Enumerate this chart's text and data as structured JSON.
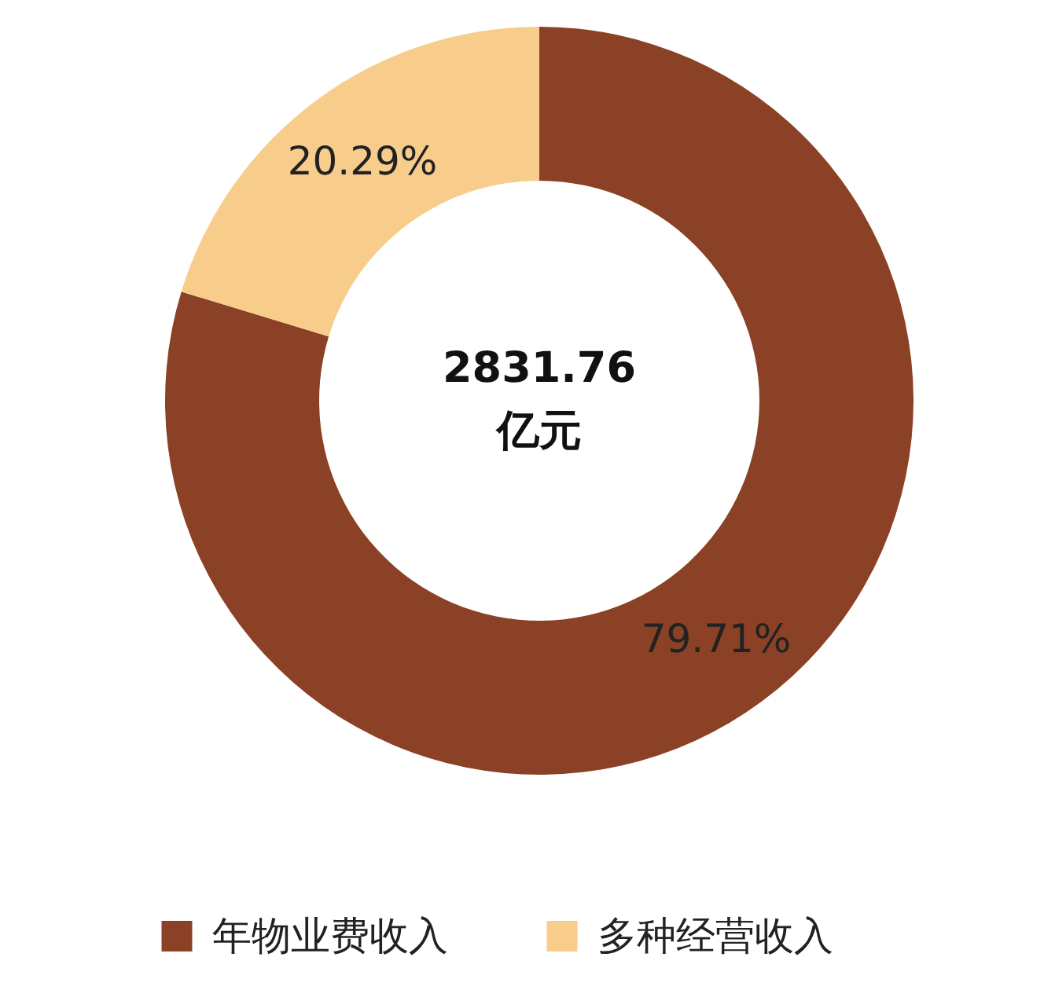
{
  "chart_data": {
    "type": "donut",
    "categories": [
      "年物业费收入",
      "多种经营收入"
    ],
    "values": [
      79.71,
      20.29
    ],
    "colors": [
      "#8b4125",
      "#f8cd8c"
    ],
    "value_labels": [
      "79.71%",
      "20.29%"
    ],
    "annotations": [
      "2831.76",
      "亿元"
    ],
    "legend": "bottom"
  }
}
